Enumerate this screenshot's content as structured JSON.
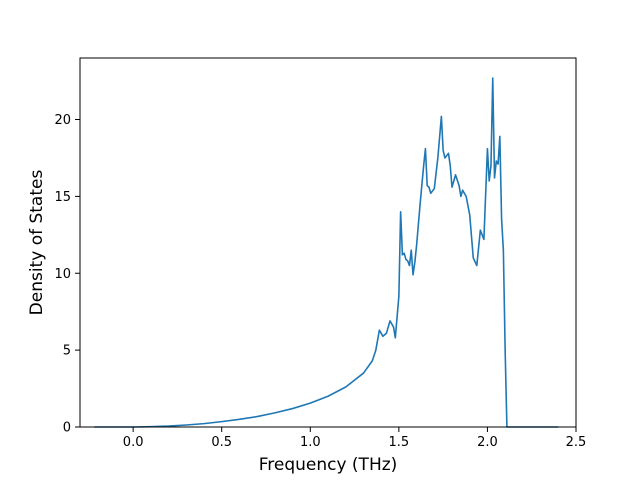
{
  "chart_data": {
    "type": "line",
    "title": "",
    "xlabel": "Frequency (THz)",
    "ylabel": "Density of States",
    "xlim": [
      -0.3,
      2.5
    ],
    "ylim": [
      0,
      24
    ],
    "xticks": [
      0.0,
      0.5,
      1.0,
      1.5,
      2.0,
      2.5
    ],
    "xtick_labels": [
      "0.0",
      "0.5",
      "1.0",
      "1.5",
      "2.0",
      "2.5"
    ],
    "yticks": [
      0,
      5,
      10,
      15,
      20
    ],
    "ytick_labels": [
      "0",
      "5",
      "10",
      "15",
      "20"
    ],
    "grid": false,
    "legend": "none",
    "color": "#1f77b4",
    "series": [
      {
        "x": [
          -0.22,
          0.0,
          0.1,
          0.2,
          0.3,
          0.4,
          0.5,
          0.6,
          0.7,
          0.8,
          0.9,
          1.0,
          1.1,
          1.2,
          1.3,
          1.35,
          1.37,
          1.39,
          1.41,
          1.43,
          1.45,
          1.47,
          1.48,
          1.5,
          1.51,
          1.52,
          1.53,
          1.54,
          1.55,
          1.56,
          1.57,
          1.58,
          1.59,
          1.6,
          1.62,
          1.64,
          1.65,
          1.66,
          1.67,
          1.68,
          1.7,
          1.72,
          1.74,
          1.75,
          1.76,
          1.78,
          1.79,
          1.8,
          1.82,
          1.84,
          1.85,
          1.86,
          1.88,
          1.9,
          1.92,
          1.94,
          1.96,
          1.98,
          2.0,
          2.01,
          2.02,
          2.03,
          2.04,
          2.05,
          2.06,
          2.07,
          2.08,
          2.09,
          2.1,
          2.11,
          2.12,
          2.13,
          2.14,
          2.16,
          2.17,
          2.4
        ],
        "y": [
          0.0,
          0.0,
          0.02,
          0.06,
          0.13,
          0.22,
          0.35,
          0.5,
          0.68,
          0.92,
          1.2,
          1.55,
          2.0,
          2.6,
          3.5,
          4.3,
          5.0,
          6.3,
          5.9,
          6.1,
          6.9,
          6.5,
          5.8,
          8.5,
          14.0,
          11.2,
          11.3,
          10.9,
          10.8,
          10.5,
          11.5,
          9.9,
          10.7,
          11.8,
          14.5,
          17.0,
          18.1,
          15.7,
          15.6,
          15.2,
          15.5,
          17.5,
          20.2,
          18.0,
          17.5,
          17.8,
          17.0,
          15.6,
          16.4,
          15.7,
          15.0,
          15.4,
          15.0,
          13.8,
          11.0,
          10.5,
          12.8,
          12.2,
          18.1,
          16.0,
          17.0,
          22.7,
          16.2,
          17.3,
          17.1,
          18.9,
          13.5,
          11.5,
          5.0,
          0.0,
          0.0,
          0.0,
          0.0,
          0.0,
          0.0,
          0.0
        ]
      }
    ]
  }
}
